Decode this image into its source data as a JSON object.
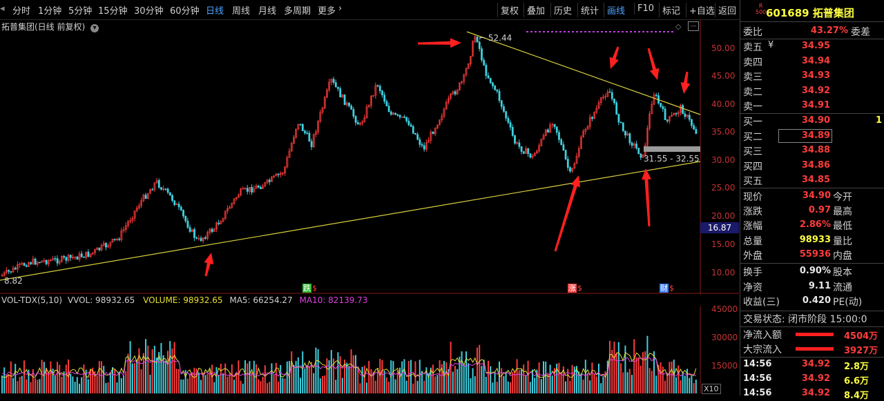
{
  "toolbar": {
    "periods": [
      "分时",
      "1分钟",
      "5分钟",
      "15分钟",
      "30分钟",
      "60分钟",
      "日线",
      "周线",
      "月线",
      "多周期",
      "更多"
    ],
    "active_period": "日线",
    "more_arrow": "›",
    "right_buttons": [
      "复权",
      "叠加",
      "历史",
      "统计",
      "画线",
      "F10",
      "标记",
      "+自选",
      "返回"
    ],
    "active_right": "画线"
  },
  "chart": {
    "title": "拓普集团(日线 前复权)",
    "price_axis": [
      "50.00",
      "45.00",
      "40.00",
      "35.00",
      "30.00",
      "25.00",
      "20.00",
      "15.00",
      "10.00"
    ],
    "current_price_tag": "16.87",
    "high_label": "52.44",
    "low_label": "8.82",
    "range_label": "31.55 - 32.55",
    "event_markers": [
      {
        "text": "跌",
        "color": "#30c030"
      },
      {
        "text": "涨",
        "color": "#ff4040"
      },
      {
        "text": "财",
        "color": "#4080ff"
      }
    ],
    "event_suffix": "$"
  },
  "volume": {
    "indicator": "VOL-TDX(5,10)",
    "vvol": "VVOL: 98932.65",
    "volume": "VOLUME: 98932.65",
    "ma5": "MA5: 66254.27",
    "ma10": "MA10: 82139.73",
    "axis": [
      "45000",
      "30000",
      "15000"
    ],
    "unit": "X10"
  },
  "panel": {
    "badge_top": "R",
    "badge_bottom": "500",
    "code": "601689",
    "name": "拓普集团",
    "weibi_label": "委比",
    "weibi_value": "43.27%",
    "weicha_label": "委差",
    "asks": [
      {
        "label": "卖五",
        "value": "34.95"
      },
      {
        "label": "卖四",
        "value": "34.94"
      },
      {
        "label": "卖三",
        "value": "34.93"
      },
      {
        "label": "卖二",
        "value": "34.92"
      },
      {
        "label": "卖一",
        "value": "34.91"
      }
    ],
    "bids": [
      {
        "label": "买一",
        "value": "34.90",
        "extra": "1"
      },
      {
        "label": "买二",
        "value": "34.89"
      },
      {
        "label": "买三",
        "value": "34.88"
      },
      {
        "label": "买四",
        "value": "34.86"
      },
      {
        "label": "买五",
        "value": "34.85"
      }
    ],
    "yen_mark": "¥",
    "quote_left": [
      {
        "label": "现价",
        "value": "34.90",
        "color": "red"
      },
      {
        "label": "涨跌",
        "value": "0.97",
        "color": "red"
      },
      {
        "label": "涨幅",
        "value": "2.86%",
        "color": "red"
      },
      {
        "label": "总量",
        "value": "98933",
        "color": "yel"
      },
      {
        "label": "外盘",
        "value": "55936",
        "color": "red"
      }
    ],
    "quote_right": [
      "今开",
      "最高",
      "最低",
      "量比",
      "内盘"
    ],
    "fund_left": [
      {
        "label": "换手",
        "value": "0.90%"
      },
      {
        "label": "净资",
        "value": "9.11"
      },
      {
        "label": "收益(三)",
        "value": "0.420"
      }
    ],
    "fund_right": [
      "股本",
      "流通",
      "PE(动)"
    ],
    "trade_status": "交易状态: 闭市阶段 15:00:0",
    "flows": [
      {
        "label": "净流入额",
        "value": "4504万"
      },
      {
        "label": "大宗流入",
        "value": "3927万"
      }
    ],
    "ticks": [
      {
        "time": "14:56",
        "price": "34.92",
        "vol": "2.8万"
      },
      {
        "time": "14:56",
        "price": "34.92",
        "vol": "6.6万"
      },
      {
        "time": "14:56",
        "price": "34.92",
        "vol": "8.4万"
      }
    ]
  },
  "colors": {
    "up": "#ff3c3c",
    "down": "#40d0e0",
    "line": "#d8d040",
    "arrow": "#ff2020"
  }
}
